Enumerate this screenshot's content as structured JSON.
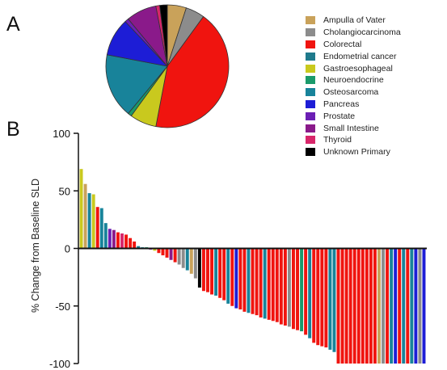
{
  "panels": {
    "a": "A",
    "b": "B"
  },
  "colors": {
    "Ampulla of Vater": "#c9a25a",
    "Cholangiocarcinoma": "#8c8c8c",
    "Colorectal": "#f0140f",
    "Endometrial cancer": "#1f7a8c",
    "Gastroesophageal": "#c9c91e",
    "Neuroendocrine": "#1a9a6b",
    "Osteosarcoma": "#18839a",
    "Pancreas": "#1d1dd6",
    "Prostate": "#6b1fb4",
    "Small Intestine": "#8a1a8a",
    "Thyroid": "#d8266a",
    "Unknown Primary": "#000000"
  },
  "chart_data": [
    {
      "type": "pie",
      "labels": [
        "Ampulla of Vater",
        "Cholangiocarcinoma",
        "Colorectal",
        "Endometrial cancer",
        "Gastroesophageal",
        "Neuroendocrine",
        "Osteosarcoma",
        "Pancreas",
        "Prostate",
        "Small Intestine",
        "Thyroid",
        "Unknown Primary"
      ],
      "values": [
        5,
        5,
        43,
        0,
        7,
        1,
        17,
        10,
        1,
        8,
        1,
        2
      ],
      "legend": [
        "Ampulla of Vater",
        "Cholangiocarcinoma",
        "Colorectal",
        "Endometrial cancer",
        "Gastroesophageal",
        "Neuroendocrine",
        "Osteosarcoma",
        "Pancreas",
        "Prostate",
        "Small Intestine",
        "Thyroid",
        "Unknown Primary"
      ],
      "legend_position": "right"
    },
    {
      "type": "bar",
      "ylabel": "% Change from Baseline SLD",
      "ylim": [
        -100,
        100
      ],
      "yticks": [
        100,
        50,
        0,
        -50,
        -100
      ],
      "grid": false,
      "bars": [
        {
          "value": 69,
          "category": "Gastroesophageal"
        },
        {
          "value": 56,
          "category": "Ampulla of Vater"
        },
        {
          "value": 48,
          "category": "Osteosarcoma"
        },
        {
          "value": 47,
          "category": "Gastroesophageal"
        },
        {
          "value": 36,
          "category": "Colorectal"
        },
        {
          "value": 35,
          "category": "Osteosarcoma"
        },
        {
          "value": 22,
          "category": "Osteosarcoma"
        },
        {
          "value": 17,
          "category": "Prostate"
        },
        {
          "value": 16,
          "category": "Small Intestine"
        },
        {
          "value": 14,
          "category": "Colorectal"
        },
        {
          "value": 13,
          "category": "Thyroid"
        },
        {
          "value": 12,
          "category": "Colorectal"
        },
        {
          "value": 9,
          "category": "Colorectal"
        },
        {
          "value": 6,
          "category": "Colorectal"
        },
        {
          "value": 2,
          "category": "Osteosarcoma"
        },
        {
          "value": 1,
          "category": "Osteosarcoma"
        },
        {
          "value": 1,
          "category": "Neuroendocrine"
        },
        {
          "value": -1,
          "category": "Small Intestine"
        },
        {
          "value": -2,
          "category": "Gastroesophageal"
        },
        {
          "value": -4,
          "category": "Colorectal"
        },
        {
          "value": -6,
          "category": "Colorectal"
        },
        {
          "value": -8,
          "category": "Colorectal"
        },
        {
          "value": -10,
          "category": "Small Intestine"
        },
        {
          "value": -12,
          "category": "Colorectal"
        },
        {
          "value": -14,
          "category": "Cholangiocarcinoma"
        },
        {
          "value": -17,
          "category": "Cholangiocarcinoma"
        },
        {
          "value": -19,
          "category": "Osteosarcoma"
        },
        {
          "value": -22,
          "category": "Ampulla of Vater"
        },
        {
          "value": -26,
          "category": "Cholangiocarcinoma"
        },
        {
          "value": -34,
          "category": "Unknown Primary"
        },
        {
          "value": -37,
          "category": "Colorectal"
        },
        {
          "value": -38,
          "category": "Colorectal"
        },
        {
          "value": -40,
          "category": "Colorectal"
        },
        {
          "value": -41,
          "category": "Osteosarcoma"
        },
        {
          "value": -43,
          "category": "Colorectal"
        },
        {
          "value": -45,
          "category": "Colorectal"
        },
        {
          "value": -48,
          "category": "Osteosarcoma"
        },
        {
          "value": -50,
          "category": "Colorectal"
        },
        {
          "value": -52,
          "category": "Pancreas"
        },
        {
          "value": -53,
          "category": "Colorectal"
        },
        {
          "value": -55,
          "category": "Colorectal"
        },
        {
          "value": -56,
          "category": "Osteosarcoma"
        },
        {
          "value": -57,
          "category": "Colorectal"
        },
        {
          "value": -58,
          "category": "Colorectal"
        },
        {
          "value": -60,
          "category": "Colorectal"
        },
        {
          "value": -61,
          "category": "Osteosarcoma"
        },
        {
          "value": -62,
          "category": "Colorectal"
        },
        {
          "value": -63,
          "category": "Colorectal"
        },
        {
          "value": -64,
          "category": "Colorectal"
        },
        {
          "value": -66,
          "category": "Colorectal"
        },
        {
          "value": -67,
          "category": "Colorectal"
        },
        {
          "value": -68,
          "category": "Cholangiocarcinoma"
        },
        {
          "value": -70,
          "category": "Colorectal"
        },
        {
          "value": -71,
          "category": "Colorectal"
        },
        {
          "value": -72,
          "category": "Neuroendocrine"
        },
        {
          "value": -75,
          "category": "Colorectal"
        },
        {
          "value": -78,
          "category": "Osteosarcoma"
        },
        {
          "value": -82,
          "category": "Colorectal"
        },
        {
          "value": -84,
          "category": "Colorectal"
        },
        {
          "value": -85,
          "category": "Colorectal"
        },
        {
          "value": -86,
          "category": "Colorectal"
        },
        {
          "value": -88,
          "category": "Osteosarcoma"
        },
        {
          "value": -90,
          "category": "Osteosarcoma"
        },
        {
          "value": -100,
          "category": "Colorectal"
        },
        {
          "value": -100,
          "category": "Colorectal"
        },
        {
          "value": -100,
          "category": "Colorectal"
        },
        {
          "value": -100,
          "category": "Colorectal"
        },
        {
          "value": -100,
          "category": "Colorectal"
        },
        {
          "value": -100,
          "category": "Colorectal"
        },
        {
          "value": -100,
          "category": "Colorectal"
        },
        {
          "value": -100,
          "category": "Colorectal"
        },
        {
          "value": -100,
          "category": "Colorectal"
        },
        {
          "value": -100,
          "category": "Colorectal"
        },
        {
          "value": -100,
          "category": "Ampulla of Vater"
        },
        {
          "value": -100,
          "category": "Cholangiocarcinoma"
        },
        {
          "value": -100,
          "category": "Colorectal"
        },
        {
          "value": -100,
          "category": "Osteosarcoma"
        },
        {
          "value": -100,
          "category": "Pancreas"
        },
        {
          "value": -100,
          "category": "Colorectal"
        },
        {
          "value": -100,
          "category": "Osteosarcoma"
        },
        {
          "value": -100,
          "category": "Colorectal"
        },
        {
          "value": -100,
          "category": "Osteosarcoma"
        },
        {
          "value": -100,
          "category": "Pancreas"
        },
        {
          "value": -100,
          "category": "Cholangiocarcinoma"
        },
        {
          "value": -100,
          "category": "Pancreas"
        }
      ]
    }
  ]
}
